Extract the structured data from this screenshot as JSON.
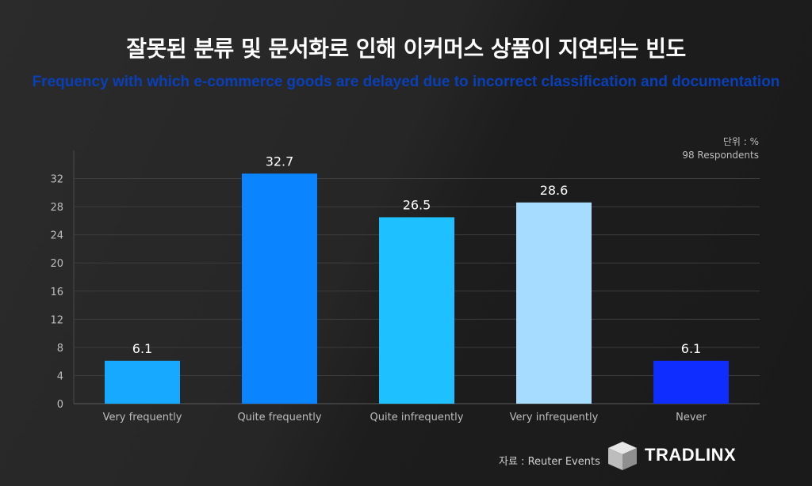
{
  "header": {
    "title": "잘못된 분류 및 문서화로 인해 이커머스 상품이 지연되는 빈도",
    "subtitle": "Frequency with which e-commerce goods are delayed due to incorrect classification and documentation"
  },
  "meta": {
    "unit": "단위 : %",
    "respondents": "98 Respondents",
    "source": "자료 : Reuter Events"
  },
  "brand": {
    "name": "TRADLINX"
  },
  "chart_data": {
    "type": "bar",
    "title": "잘못된 분류 및 문서화로 인해 이커머스 상품이 지연되는 빈도",
    "categories": [
      "Very frequently",
      "Quite frequently",
      "Quite infrequently",
      "Very infrequently",
      "Never"
    ],
    "values": [
      6.1,
      32.7,
      26.5,
      28.6,
      6.1
    ],
    "value_labels": [
      "6.1",
      "32.7",
      "26.5",
      "28.6",
      "6.1"
    ],
    "colors": [
      "#16a9ff",
      "#0a84ff",
      "#1ec0ff",
      "#a6dcff",
      "#0f2dff"
    ],
    "yticks": [
      0,
      4,
      8,
      12,
      16,
      20,
      24,
      28,
      32
    ],
    "ylim": [
      0,
      36
    ],
    "xlabel": "",
    "ylabel": "",
    "grid": true
  }
}
